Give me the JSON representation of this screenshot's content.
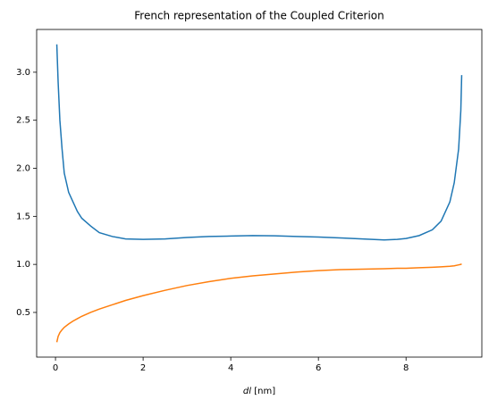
{
  "chart_data": {
    "type": "line",
    "title": "French representation of the Coupled Criterion",
    "xlabel": [
      "dl",
      "[nm]"
    ],
    "x": [
      0.03,
      0.06,
      0.1,
      0.15,
      0.2,
      0.3,
      0.4,
      0.5,
      0.6,
      0.8,
      1.0,
      1.3,
      1.6,
      2.0,
      2.5,
      3.0,
      3.5,
      4.0,
      4.5,
      5.0,
      5.5,
      6.0,
      6.5,
      7.0,
      7.5,
      7.8,
      8.0,
      8.3,
      8.6,
      8.8,
      9.0,
      9.1,
      9.2,
      9.25,
      9.27
    ],
    "series": [
      {
        "color": "#1f77b4",
        "values": [
          3.29,
          2.9,
          2.5,
          2.2,
          1.95,
          1.75,
          1.65,
          1.55,
          1.48,
          1.4,
          1.33,
          1.29,
          1.265,
          1.26,
          1.265,
          1.28,
          1.29,
          1.295,
          1.3,
          1.298,
          1.29,
          1.285,
          1.275,
          1.265,
          1.255,
          1.26,
          1.27,
          1.3,
          1.36,
          1.45,
          1.65,
          1.85,
          2.2,
          2.6,
          2.97
        ]
      },
      {
        "color": "#ff7f0e",
        "values": [
          0.19,
          0.25,
          0.29,
          0.32,
          0.345,
          0.38,
          0.41,
          0.435,
          0.46,
          0.5,
          0.535,
          0.58,
          0.625,
          0.675,
          0.73,
          0.78,
          0.82,
          0.855,
          0.88,
          0.9,
          0.92,
          0.935,
          0.945,
          0.95,
          0.955,
          0.96,
          0.96,
          0.965,
          0.97,
          0.975,
          0.98,
          0.985,
          0.995,
          1.0,
          1.005
        ]
      }
    ],
    "xlim": [
      -0.43,
      9.73
    ],
    "ylim": [
      0.035,
      3.445
    ],
    "xticks": [
      0,
      2,
      4,
      6,
      8
    ],
    "yticks": [
      {
        "value": 0.5,
        "label": "0.5"
      },
      {
        "value": 1.0,
        "label": "1.0"
      },
      {
        "value": 1.5,
        "label": "1.5"
      },
      {
        "value": 2.0,
        "label": "2.0"
      },
      {
        "value": 2.5,
        "label": "2.5"
      },
      {
        "value": 3.0,
        "label": "3.0"
      }
    ]
  }
}
